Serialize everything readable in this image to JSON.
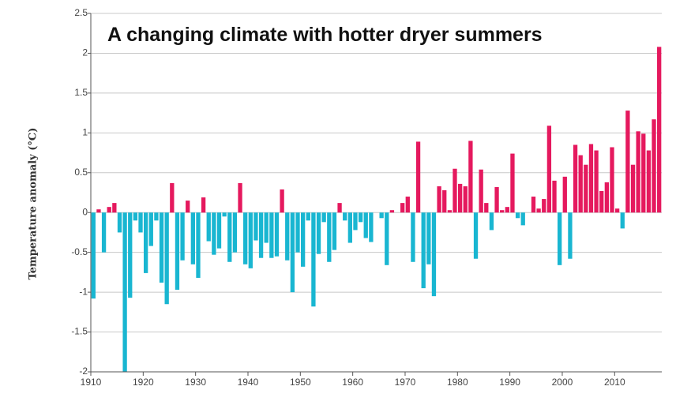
{
  "chart_data": {
    "type": "bar",
    "title": "A changing climate with hotter dryer summers",
    "y_label": "Temperature anomaly (°C)",
    "x": [
      1910,
      1911,
      1912,
      1913,
      1914,
      1915,
      1916,
      1917,
      1918,
      1919,
      1920,
      1921,
      1922,
      1923,
      1924,
      1925,
      1926,
      1927,
      1928,
      1929,
      1930,
      1931,
      1932,
      1933,
      1934,
      1935,
      1936,
      1937,
      1938,
      1939,
      1940,
      1941,
      1942,
      1943,
      1944,
      1945,
      1946,
      1947,
      1948,
      1949,
      1950,
      1951,
      1952,
      1953,
      1954,
      1955,
      1956,
      1957,
      1958,
      1959,
      1960,
      1961,
      1962,
      1963,
      1964,
      1965,
      1966,
      1967,
      1968,
      1969,
      1970,
      1971,
      1972,
      1973,
      1974,
      1975,
      1976,
      1977,
      1978,
      1979,
      1980,
      1981,
      1982,
      1983,
      1984,
      1985,
      1986,
      1987,
      1988,
      1989,
      1990,
      1991,
      1992,
      1993,
      1994,
      1995,
      1996,
      1997,
      1998,
      1999,
      2000,
      2001,
      2002,
      2003,
      2004,
      2005,
      2006,
      2007,
      2008,
      2009,
      2010,
      2011,
      2012,
      2013,
      2014,
      2015,
      2016,
      2017,
      2018
    ],
    "values": [
      -1.08,
      0.04,
      -0.5,
      0.07,
      0.12,
      -0.25,
      -2.0,
      -1.07,
      -0.1,
      -0.25,
      -0.76,
      -0.42,
      -0.1,
      -0.88,
      -1.15,
      0.37,
      -0.97,
      -0.6,
      0.15,
      -0.65,
      -0.82,
      0.19,
      -0.36,
      -0.53,
      -0.45,
      -0.05,
      -0.62,
      -0.5,
      0.37,
      -0.65,
      -0.7,
      -0.35,
      -0.57,
      -0.38,
      -0.57,
      -0.55,
      0.29,
      -0.6,
      -1.0,
      -0.5,
      -0.68,
      -0.1,
      -1.18,
      -0.52,
      -0.12,
      -0.62,
      -0.47,
      0.12,
      -0.1,
      -0.38,
      -0.22,
      -0.12,
      -0.32,
      -0.37,
      0,
      -0.07,
      -0.66,
      0.03,
      0,
      0.12,
      0.2,
      -0.62,
      0.89,
      -0.95,
      -0.65,
      -1.05,
      0.33,
      0.28,
      0.03,
      0.55,
      0.36,
      0.33,
      0.9,
      -0.58,
      0.54,
      0.12,
      -0.22,
      0.32,
      0.03,
      0.07,
      0.74,
      -0.07,
      -0.16,
      0,
      0.2,
      0.05,
      0.17,
      1.09,
      0.4,
      -0.66,
      0.45,
      -0.58,
      0.85,
      0.72,
      0.6,
      0.86,
      0.78,
      0.27,
      0.38,
      0.82,
      0.05,
      -0.2,
      1.28,
      0.6,
      1.02,
      0.99,
      0.78,
      1.17,
      2.08
    ],
    "positive_color": "#e5195e",
    "negative_color": "#19b6d1",
    "xlim": [
      1910,
      2019
    ],
    "xticks": [
      1910,
      1920,
      1930,
      1940,
      1950,
      1960,
      1970,
      1980,
      1990,
      2000,
      2010
    ],
    "ylim": [
      -2,
      2.5
    ],
    "yticks": [
      2.5,
      2,
      1.5,
      1,
      0.5,
      0,
      -0.5,
      -1,
      -1.5,
      -2
    ],
    "grid": true
  }
}
